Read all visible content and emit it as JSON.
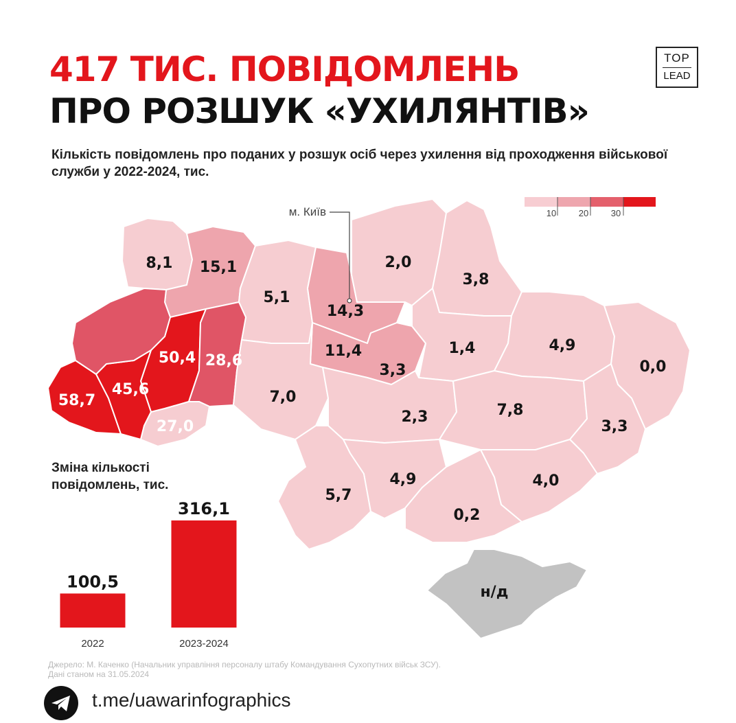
{
  "title": {
    "line1": "417 ТИС. ПОВІДОМЛЕНЬ",
    "line2": "ПРО РОЗШУК «УХИЛЯНТІВ»"
  },
  "logo": {
    "line1": "TOP",
    "line2": "LEAD"
  },
  "subtitle": "Кількість повідомлень про поданих у розшук осіб через ухилення від проходження військової служби у 2022-2024, тис.",
  "kyiv_label": "м. Київ",
  "legend": {
    "ticks": [
      "10",
      "20",
      "30"
    ],
    "colors": [
      "#f7cdd2",
      "#eea6ae",
      "#e4606c",
      "#e3161c"
    ]
  },
  "colors": {
    "accent": "#e3161c",
    "low": "#f6cdd1",
    "mid": "#eea5ad",
    "high": "#e05566",
    "max": "#e3161c",
    "no_data": "#c2c2c2"
  },
  "regions": [
    {
      "value": "8,1",
      "level": "low"
    },
    {
      "value": "15,1",
      "level": "mid"
    },
    {
      "value": "5,1",
      "level": "low"
    },
    {
      "value": "14,3",
      "level": "mid"
    },
    {
      "value": "2,0",
      "level": "low"
    },
    {
      "value": "3,8",
      "level": "low"
    },
    {
      "value": "11,4",
      "level": "mid"
    },
    {
      "value": "50,4",
      "level": "max"
    },
    {
      "value": "28,6",
      "level": "high"
    },
    {
      "value": "58,7",
      "level": "max"
    },
    {
      "value": "45,6",
      "level": "max"
    },
    {
      "value": "27,0",
      "level": "high"
    },
    {
      "value": "7,0",
      "level": "low"
    },
    {
      "value": "3,3",
      "level": "low"
    },
    {
      "value": "1,4",
      "level": "low"
    },
    {
      "value": "4,9",
      "level": "low"
    },
    {
      "value": "0,0",
      "level": "low"
    },
    {
      "value": "2,3",
      "level": "low"
    },
    {
      "value": "7,8",
      "level": "low"
    },
    {
      "value": "3,3",
      "level": "low"
    },
    {
      "value": "5,7",
      "level": "low"
    },
    {
      "value": "4,9",
      "level": "low"
    },
    {
      "value": "4,0",
      "level": "low"
    },
    {
      "value": "0,2",
      "level": "low"
    },
    {
      "value": "н/д",
      "level": "no_data"
    }
  ],
  "chart_title": "Зміна кількості повідомлень, тис.",
  "chart_data": {
    "type": "bar",
    "categories": [
      "2022",
      "2023-2024"
    ],
    "values": [
      100.5,
      316.1
    ],
    "value_labels": [
      "100,5",
      "316,1"
    ]
  },
  "source": {
    "line1": "Джерело: М. Каченко (Начальник управління персоналу штабу Командування Сухопутних військ ЗСУ).",
    "line2": "Дані станом на 31.05.2024"
  },
  "telegram_link": "t.me/uawarinfographics"
}
